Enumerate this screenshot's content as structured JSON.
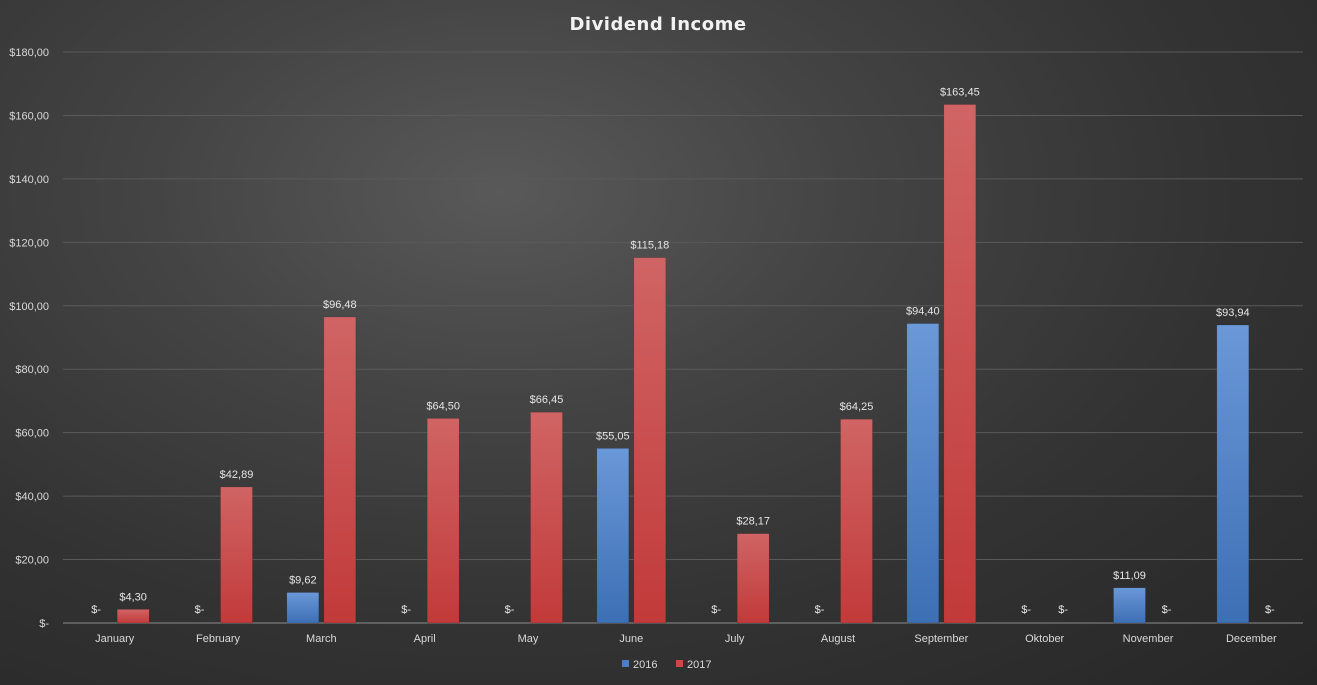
{
  "chart_data": {
    "type": "bar",
    "title": "Dividend Income",
    "xlabel": "",
    "ylabel": "",
    "ylim": [
      0,
      180
    ],
    "y_ticks": [
      {
        "value": 0,
        "label": "$-"
      },
      {
        "value": 20,
        "label": "$20,00"
      },
      {
        "value": 40,
        "label": "$40,00"
      },
      {
        "value": 60,
        "label": "$60,00"
      },
      {
        "value": 80,
        "label": "$80,00"
      },
      {
        "value": 100,
        "label": "$100,00"
      },
      {
        "value": 120,
        "label": "$120,00"
      },
      {
        "value": 140,
        "label": "$140,00"
      },
      {
        "value": 160,
        "label": "$160,00"
      },
      {
        "value": 180,
        "label": "$180,00"
      }
    ],
    "grid": true,
    "legend_position": "bottom",
    "categories": [
      "January",
      "February",
      "March",
      "April",
      "May",
      "June",
      "July",
      "August",
      "September",
      "Oktober",
      "November",
      "December"
    ],
    "series": [
      {
        "name": "2016",
        "color": "#4a7ec8",
        "values": [
          0,
          0,
          9.62,
          0,
          0,
          55.05,
          0,
          0,
          94.4,
          0,
          11.09,
          93.94
        ],
        "labels": [
          "$-",
          "$-",
          "$9,62",
          "$-",
          "$-",
          "$55,05",
          "$-",
          "$-",
          "$94,40",
          "$-",
          "$11,09",
          "$93,94"
        ]
      },
      {
        "name": "2017",
        "color": "#cc4848",
        "values": [
          4.3,
          42.89,
          96.48,
          64.5,
          66.45,
          115.18,
          28.17,
          64.25,
          163.45,
          0,
          0,
          0
        ],
        "labels": [
          "$4,30",
          "$42,89",
          "$96,48",
          "$64,50",
          "$66,45",
          "$115,18",
          "$28,17",
          "$64,25",
          "$163,45",
          "$-",
          "$-",
          "$-"
        ]
      }
    ]
  }
}
